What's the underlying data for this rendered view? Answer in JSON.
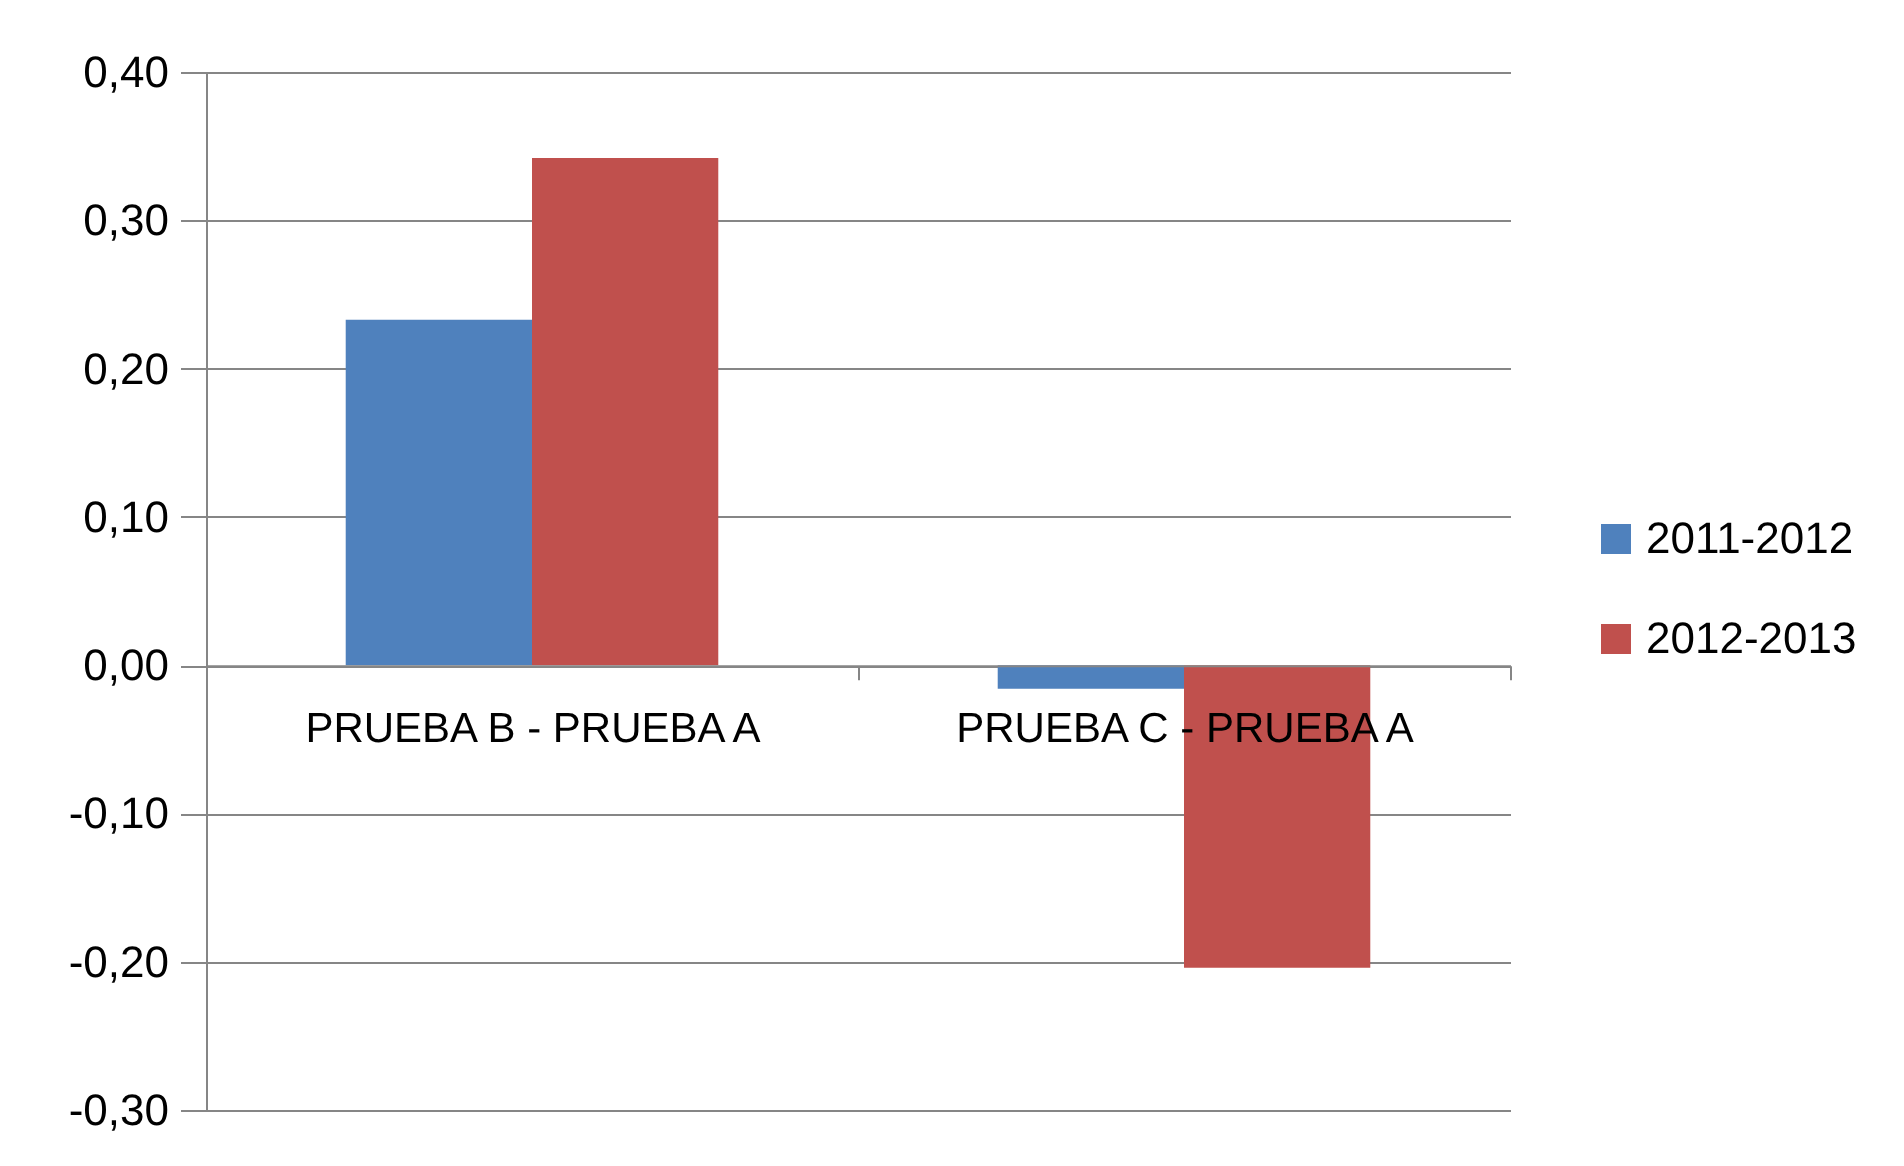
{
  "chart_data": {
    "type": "bar",
    "categories": [
      "PRUEBA B - PRUEBA A",
      "PRUEBA C - PRUEBA A"
    ],
    "series": [
      {
        "name": "2011-2012",
        "color": "#4f81bd",
        "values": [
          0.233,
          -0.016
        ]
      },
      {
        "name": "2012-2013",
        "color": "#c0504d",
        "values": [
          0.342,
          -0.204
        ]
      }
    ],
    "ylim": [
      -0.3,
      0.4
    ],
    "yticks": [
      {
        "value": -0.3,
        "label": "-0,30"
      },
      {
        "value": -0.2,
        "label": "-0,20"
      },
      {
        "value": -0.1,
        "label": "-0,10"
      },
      {
        "value": 0,
        "label": "0,00"
      },
      {
        "value": 0.1,
        "label": "0,10"
      },
      {
        "value": 0.2,
        "label": "0,20"
      },
      {
        "value": 0.3,
        "label": "0,30"
      },
      {
        "value": 0.4,
        "label": "0,40"
      }
    ],
    "grid": "y",
    "legend": "right"
  }
}
